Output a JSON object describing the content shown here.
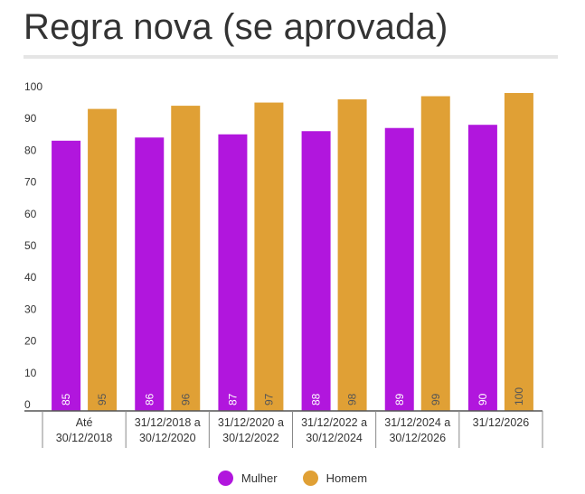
{
  "chart_data": {
    "type": "bar",
    "title": "Regra nova (se aprovada)",
    "categories": [
      [
        "Até",
        "30/12/2018"
      ],
      [
        "31/12/2018 a",
        "30/12/2020"
      ],
      [
        "31/12/2020 a",
        "30/12/2022"
      ],
      [
        "31/12/2022 a",
        "30/12/2024"
      ],
      [
        "31/12/2024 a",
        "30/12/2026"
      ],
      [
        "31/12/2026",
        ""
      ]
    ],
    "series": [
      {
        "name": "Mulher",
        "values": [
          85,
          86,
          87,
          88,
          89,
          90
        ]
      },
      {
        "name": "Homem",
        "values": [
          95,
          96,
          97,
          98,
          99,
          100
        ]
      }
    ],
    "ylim": [
      0,
      100
    ],
    "yticks": [
      0,
      10,
      20,
      30,
      40,
      50,
      60,
      70,
      80,
      90,
      100
    ],
    "grid": false,
    "legend_position": "bottom"
  },
  "colors": {
    "Mulher": "#b116dd",
    "Homem": "#e0a035"
  },
  "legend": [
    {
      "label": "Mulher",
      "color": "#b116dd"
    },
    {
      "label": "Homem",
      "color": "#e0a035"
    }
  ]
}
